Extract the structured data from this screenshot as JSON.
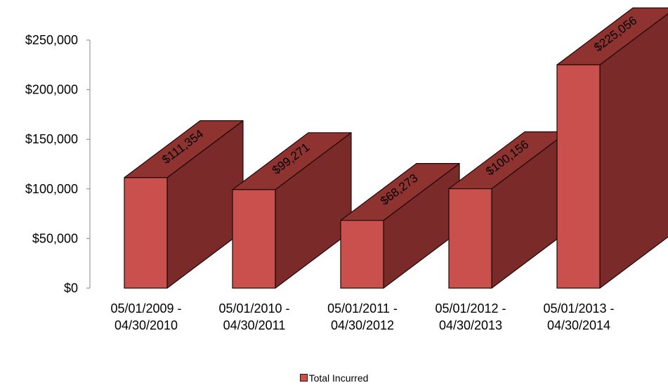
{
  "chart_data": {
    "type": "bar",
    "three_d": true,
    "categories": [
      [
        "05/01/2009 -",
        "04/30/2010"
      ],
      [
        "05/01/2010 -",
        "04/30/2011"
      ],
      [
        "05/01/2011 -",
        "04/30/2012"
      ],
      [
        "05/01/2012 -",
        "04/30/2013"
      ],
      [
        "05/01/2013 -",
        "04/30/2014"
      ]
    ],
    "series": [
      {
        "name": "Total Incurred",
        "values": [
          111354,
          99271,
          68273,
          100156,
          225056
        ],
        "data_labels": [
          "$111,354",
          "$99,271",
          "$68,273",
          "$100,156",
          "$225,056"
        ]
      }
    ],
    "ylim": [
      0,
      250000
    ],
    "yticks": [
      "$0",
      "$50,000",
      "$100,000",
      "$150,000",
      "$200,000",
      "$250,000"
    ],
    "grid": false,
    "legend_position": "bottom",
    "colors": {
      "front": "#c9504d",
      "top": "#8e3330",
      "side": "#7a2b29",
      "edge": "#1f0606"
    }
  },
  "legend": {
    "label": "Total Incurred"
  }
}
